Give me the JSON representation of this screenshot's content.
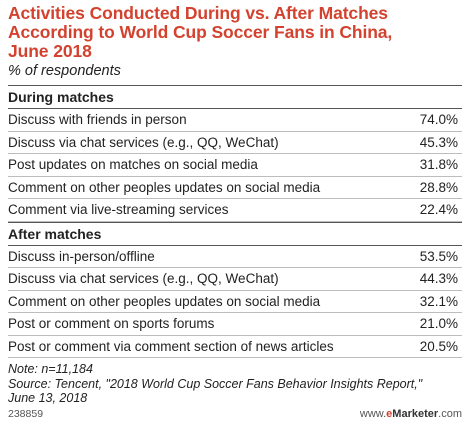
{
  "chart_data": {
    "type": "table",
    "title": "Activities Conducted During vs. After Matches\nAccording to World Cup Soccer Fans in China,\nJune 2018",
    "subtitle": "% of respondents",
    "sections": [
      {
        "header": "During matches",
        "rows": [
          {
            "label": "Discuss with friends in person",
            "value": "74.0%"
          },
          {
            "label": "Discuss via chat services (e.g., QQ, WeChat)",
            "value": "45.3%"
          },
          {
            "label": "Post updates on matches on social media",
            "value": "31.8%"
          },
          {
            "label": "Comment on other peoples updates on social media",
            "value": "28.8%"
          },
          {
            "label": "Comment via live-streaming services",
            "value": "22.4%"
          }
        ]
      },
      {
        "header": "After matches",
        "rows": [
          {
            "label": "Discuss in-person/offline",
            "value": "53.5%"
          },
          {
            "label": "Discuss via chat services (e.g., QQ, WeChat)",
            "value": "44.3%"
          },
          {
            "label": "Comment on other peoples updates on social media",
            "value": "32.1%"
          },
          {
            "label": "Post or comment on sports forums",
            "value": "21.0%"
          },
          {
            "label": "Post or comment via comment section of news articles",
            "value": "20.5%"
          }
        ]
      }
    ],
    "note": "Note: n=11,184",
    "source": "Source: Tencent, \"2018 World Cup Soccer Fans Behavior Insights Report,\"\n    June 13, 2018"
  },
  "footer": {
    "chart_id": "238859",
    "brand_prefix": "www.",
    "brand_e": "e",
    "brand_name": "Marketer",
    "brand_suffix": ".com"
  },
  "colors": {
    "title": "#d3422f",
    "accent": "#d3422f"
  }
}
